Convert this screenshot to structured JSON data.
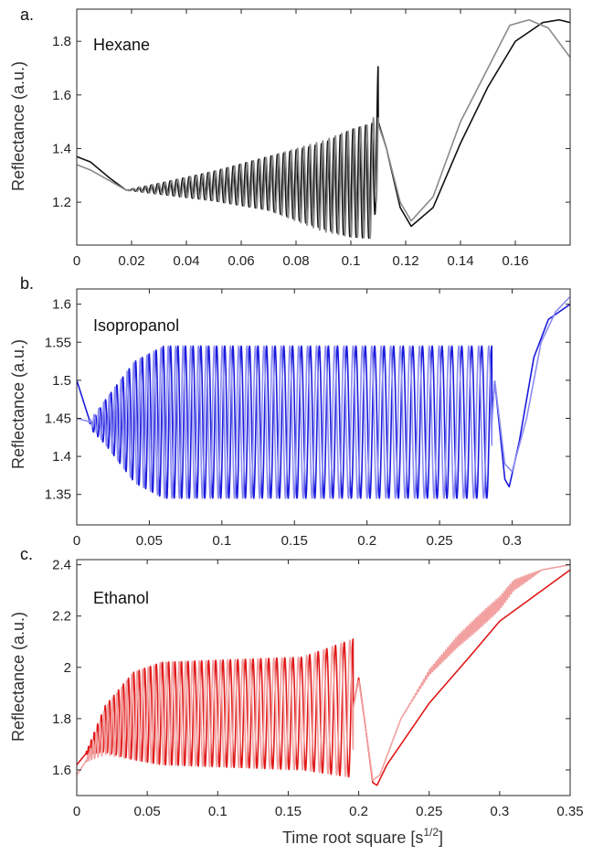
{
  "figure": {
    "xlabel_main": "Time root square [s",
    "xlabel_sup": "1/2",
    "xlabel_end": "]"
  },
  "chart_data": [
    {
      "type": "line",
      "panel": "a.",
      "title": "Hexane",
      "ylabel": "Reflectance (a.u.)",
      "xlabel": "",
      "xlim": [
        0,
        0.18
      ],
      "ylim": [
        1.04,
        1.92
      ],
      "xticks": [
        0,
        0.02,
        0.04,
        0.06,
        0.08,
        0.1,
        0.12,
        0.14,
        0.16
      ],
      "xtick_labels": [
        "0",
        "0.02",
        "0.04",
        "0.06",
        "0.08",
        "0.1",
        "0.12",
        "0.14",
        "0.16"
      ],
      "yticks": [
        1.2,
        1.4,
        1.6,
        1.8
      ],
      "ytick_labels": [
        "1.2",
        "1.4",
        "1.6",
        "1.8"
      ],
      "grid": false,
      "series": [
        {
          "color": "#111111",
          "osc_start": 0.018,
          "osc_end": 0.11,
          "phase_start": 0.0,
          "phase_end": 40.0,
          "osc_power": 1.0,
          "envelope": [
            [
              0.018,
              0.0
            ],
            [
              0.03,
              0.02
            ],
            [
              0.05,
              0.055
            ],
            [
              0.07,
              0.1
            ],
            [
              0.09,
              0.16
            ],
            [
              0.1,
              0.2
            ],
            [
              0.108,
              0.215
            ],
            [
              0.11,
              0.215
            ]
          ],
          "baseline": [
            [
              0,
              1.37
            ],
            [
              0.005,
              1.35
            ],
            [
              0.012,
              1.29
            ],
            [
              0.018,
              1.245
            ],
            [
              0.03,
              1.25
            ],
            [
              0.05,
              1.26
            ],
            [
              0.07,
              1.27
            ],
            [
              0.09,
              1.26
            ],
            [
              0.1,
              1.27
            ],
            [
              0.108,
              1.28
            ],
            [
              0.11,
              1.5
            ],
            [
              0.113,
              1.4
            ],
            [
              0.118,
              1.18
            ],
            [
              0.122,
              1.11
            ],
            [
              0.13,
              1.18
            ],
            [
              0.14,
              1.42
            ],
            [
              0.15,
              1.63
            ],
            [
              0.16,
              1.8
            ],
            [
              0.17,
              1.87
            ],
            [
              0.176,
              1.88
            ],
            [
              0.18,
              1.87
            ]
          ]
        },
        {
          "color": "#8a8a8a",
          "osc_start": 0.018,
          "osc_end": 0.11,
          "phase_start": -0.2,
          "phase_end": 39.8,
          "osc_power": 1.0,
          "envelope": [
            [
              0.018,
              0.0
            ],
            [
              0.03,
              0.02
            ],
            [
              0.05,
              0.055
            ],
            [
              0.07,
              0.1
            ],
            [
              0.09,
              0.17
            ],
            [
              0.1,
              0.2
            ],
            [
              0.108,
              0.215
            ],
            [
              0.11,
              0.215
            ]
          ],
          "baseline": [
            [
              0,
              1.34
            ],
            [
              0.005,
              1.32
            ],
            [
              0.012,
              1.28
            ],
            [
              0.018,
              1.245
            ],
            [
              0.03,
              1.25
            ],
            [
              0.05,
              1.26
            ],
            [
              0.07,
              1.27
            ],
            [
              0.09,
              1.26
            ],
            [
              0.1,
              1.27
            ],
            [
              0.108,
              1.28
            ],
            [
              0.11,
              1.49
            ],
            [
              0.113,
              1.4
            ],
            [
              0.118,
              1.2
            ],
            [
              0.122,
              1.13
            ],
            [
              0.13,
              1.22
            ],
            [
              0.14,
              1.5
            ],
            [
              0.15,
              1.7
            ],
            [
              0.158,
              1.86
            ],
            [
              0.165,
              1.88
            ],
            [
              0.172,
              1.85
            ],
            [
              0.18,
              1.74
            ]
          ]
        }
      ]
    },
    {
      "type": "line",
      "panel": "b.",
      "title": "Isopropanol",
      "ylabel": "Reflectance (a.u.)",
      "xlabel": "",
      "xlim": [
        0,
        0.34
      ],
      "ylim": [
        1.31,
        1.62
      ],
      "xticks": [
        0,
        0.05,
        0.1,
        0.15,
        0.2,
        0.25,
        0.3
      ],
      "xtick_labels": [
        "0",
        "0.05",
        "0.1",
        "0.15",
        "0.2",
        "0.25",
        "0.3"
      ],
      "yticks": [
        1.35,
        1.4,
        1.45,
        1.5,
        1.55,
        1.6
      ],
      "ytick_labels": [
        "1.35",
        "1.4",
        "1.45",
        "1.5",
        "1.55",
        "1.6"
      ],
      "grid": false,
      "series": [
        {
          "color": "#1a1adc",
          "osc_start": 0.008,
          "osc_end": 0.286,
          "phase_start": 0.0,
          "phase_end": 50.0,
          "osc_power": 0.8,
          "envelope": [
            [
              0.008,
              0.0
            ],
            [
              0.02,
              0.03
            ],
            [
              0.04,
              0.08
            ],
            [
              0.06,
              0.1
            ],
            [
              0.286,
              0.1
            ]
          ],
          "baseline": [
            [
              0,
              1.5
            ],
            [
              0.005,
              1.47
            ],
            [
              0.01,
              1.44
            ],
            [
              0.02,
              1.445
            ],
            [
              0.04,
              1.445
            ],
            [
              0.286,
              1.445
            ],
            [
              0.288,
              1.5
            ],
            [
              0.295,
              1.37
            ],
            [
              0.298,
              1.36
            ],
            [
              0.305,
              1.42
            ],
            [
              0.315,
              1.53
            ],
            [
              0.325,
              1.58
            ],
            [
              0.34,
              1.6
            ]
          ]
        },
        {
          "color": "#8c8cf2",
          "osc_start": 0.008,
          "osc_end": 0.286,
          "phase_start": 0.3,
          "phase_end": 50.3,
          "osc_power": 0.8,
          "envelope": [
            [
              0.008,
              0.0
            ],
            [
              0.02,
              0.03
            ],
            [
              0.04,
              0.08
            ],
            [
              0.06,
              0.1
            ],
            [
              0.286,
              0.1
            ]
          ],
          "baseline": [
            [
              0,
              1.45
            ],
            [
              0.01,
              1.445
            ],
            [
              0.02,
              1.445
            ],
            [
              0.286,
              1.445
            ],
            [
              0.288,
              1.5
            ],
            [
              0.295,
              1.39
            ],
            [
              0.3,
              1.38
            ],
            [
              0.31,
              1.45
            ],
            [
              0.32,
              1.55
            ],
            [
              0.33,
              1.59
            ],
            [
              0.34,
              1.61
            ]
          ]
        }
      ]
    },
    {
      "type": "line",
      "panel": "c.",
      "title": "Ethanol",
      "ylabel": "Reflectance (a.u.)",
      "xlabel": "",
      "xlim": [
        0,
        0.35
      ],
      "ylim": [
        1.5,
        2.42
      ],
      "xticks": [
        0,
        0.05,
        0.1,
        0.15,
        0.2,
        0.25,
        0.3,
        0.35
      ],
      "xtick_labels": [
        "0",
        "0.05",
        "0.1",
        "0.15",
        "0.2",
        "0.25",
        "0.3",
        "0.35"
      ],
      "yticks": [
        1.6,
        1.8,
        2.0,
        2.2,
        2.4
      ],
      "ytick_labels": [
        "1.6",
        "1.8",
        "2",
        "2.2",
        "2.4"
      ],
      "grid": false,
      "series": [
        {
          "color": "#e01818",
          "osc_start": 0.006,
          "osc_end": 0.196,
          "phase_start": 0.0,
          "phase_end": 43.0,
          "osc_power": 0.7,
          "envelope": [
            [
              0.006,
              0.0
            ],
            [
              0.02,
              0.09
            ],
            [
              0.04,
              0.17
            ],
            [
              0.06,
              0.2
            ],
            [
              0.16,
              0.22
            ],
            [
              0.196,
              0.27
            ]
          ],
          "baseline": [
            [
              0,
              1.62
            ],
            [
              0.006,
              1.66
            ],
            [
              0.02,
              1.76
            ],
            [
              0.04,
              1.81
            ],
            [
              0.06,
              1.82
            ],
            [
              0.16,
              1.82
            ],
            [
              0.196,
              1.84
            ],
            [
              0.2,
              1.96
            ],
            [
              0.205,
              1.76
            ],
            [
              0.21,
              1.55
            ],
            [
              0.213,
              1.54
            ],
            [
              0.22,
              1.62
            ],
            [
              0.25,
              1.86
            ],
            [
              0.28,
              2.05
            ],
            [
              0.3,
              2.18
            ],
            [
              0.32,
              2.26
            ],
            [
              0.35,
              2.38
            ]
          ]
        },
        {
          "color": "#f2a0a0",
          "osc_start": 0.006,
          "osc_end": 0.196,
          "phase_start": 0.35,
          "phase_end": 43.35,
          "osc_power": 0.7,
          "envelope": [
            [
              0.006,
              0.0
            ],
            [
              0.02,
              0.09
            ],
            [
              0.04,
              0.17
            ],
            [
              0.06,
              0.2
            ],
            [
              0.16,
              0.22
            ],
            [
              0.196,
              0.27
            ]
          ],
          "baseline": [
            [
              0,
              1.58
            ],
            [
              0.006,
              1.63
            ],
            [
              0.02,
              1.75
            ],
            [
              0.04,
              1.81
            ],
            [
              0.06,
              1.82
            ],
            [
              0.16,
              1.82
            ],
            [
              0.196,
              1.84
            ],
            [
              0.2,
              1.95
            ],
            [
              0.205,
              1.76
            ],
            [
              0.21,
              1.56
            ],
            [
              0.215,
              1.58
            ],
            [
              0.23,
              1.8
            ],
            [
              0.25,
              1.98
            ],
            [
              0.27,
              2.1
            ],
            [
              0.29,
              2.2
            ],
            [
              0.3,
              2.25
            ],
            [
              0.31,
              2.32
            ],
            [
              0.33,
              2.38
            ],
            [
              0.35,
              2.4
            ]
          ],
          "wiggle": {
            "x0": 0.23,
            "x1": 0.33,
            "amp": 0.04,
            "cycles": 70
          }
        }
      ]
    }
  ]
}
